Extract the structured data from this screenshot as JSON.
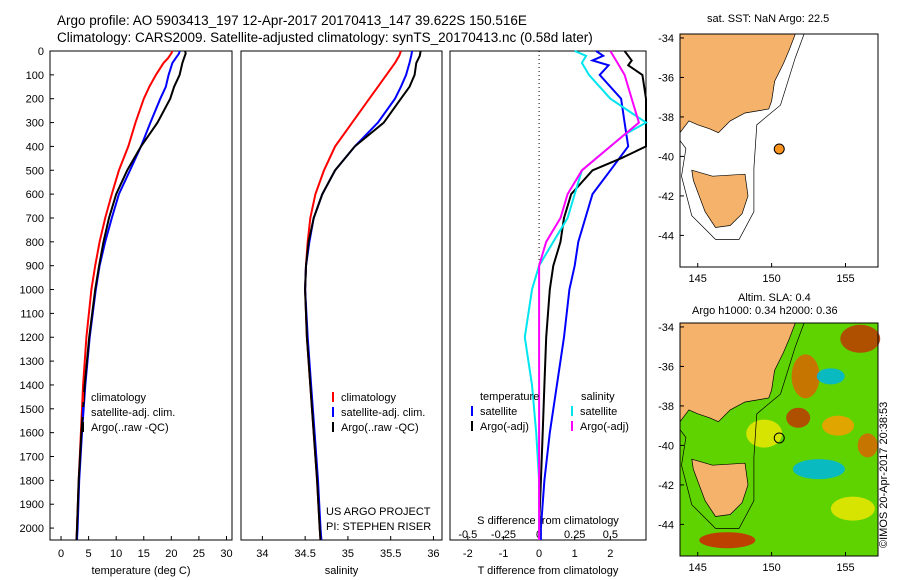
{
  "header": {
    "line1": "Argo profile: AO 5903413_197 12-Apr-2017 20170413_147 39.622S 150.516E",
    "line2": "Climatology: CARS2009. Satellite-adjusted climatology: synTS_20170413.nc (0.58d later)"
  },
  "depth_ticks": [
    "0",
    "100",
    "200",
    "300",
    "400",
    "500",
    "600",
    "700",
    "800",
    "900",
    "1000",
    "1100",
    "1200",
    "1300",
    "1400",
    "1500",
    "1600",
    "1700",
    "1800",
    "1900",
    "2000"
  ],
  "colors": {
    "climatology": "#ff0000",
    "satellite": "#0000ff",
    "argo": "#000000",
    "sat_salinity": "#00e5ee",
    "argo_salinity": "#ff00ff",
    "land": "#f5b26b",
    "map_ocean": "#ffffff"
  },
  "chart_data": [
    {
      "type": "line",
      "name": "temperature",
      "xlabel": "temperature (deg C)",
      "xlim": [
        -2,
        31
      ],
      "ylim": [
        2050,
        0
      ],
      "xticks": [
        "0",
        "5",
        "10",
        "15",
        "20",
        "25",
        "30"
      ],
      "legend": [
        "climatology",
        "satellite-adj. clim.",
        "Argo(..raw -QC)"
      ],
      "series": [
        {
          "key": "climatology",
          "color": "#ff0000",
          "depth": [
            0,
            10,
            30,
            50,
            100,
            150,
            200,
            300,
            400,
            500,
            600,
            700,
            800,
            900,
            1000,
            1200,
            1400,
            1600,
            1800,
            2000,
            2050
          ],
          "values": [
            20.2,
            20.0,
            19.4,
            18.6,
            17.2,
            16.0,
            15.0,
            13.5,
            12.2,
            10.5,
            9.2,
            8.0,
            7.0,
            6.2,
            5.5,
            4.6,
            4.0,
            3.6,
            3.2,
            2.9,
            2.8
          ]
        },
        {
          "key": "satellite",
          "color": "#0000ff",
          "depth": [
            0,
            10,
            30,
            50,
            100,
            150,
            200,
            300,
            400,
            500,
            600,
            700,
            800,
            900,
            1000,
            1200,
            1400,
            1600,
            1800,
            2000,
            2050
          ],
          "values": [
            21.5,
            21.4,
            20.8,
            20.2,
            19.5,
            19.0,
            18.0,
            16.2,
            14.5,
            12.5,
            10.5,
            9.2,
            8.0,
            7.0,
            6.3,
            5.2,
            4.4,
            3.8,
            3.3,
            3.0,
            2.9
          ]
        },
        {
          "key": "argo",
          "color": "#000000",
          "depth": [
            0,
            10,
            30,
            50,
            100,
            150,
            200,
            300,
            400,
            500,
            600,
            700,
            800,
            900,
            1000,
            1200,
            1400,
            1600,
            1800,
            2000,
            2050
          ],
          "values": [
            22.5,
            22.6,
            22.3,
            22.0,
            21.5,
            20.5,
            19.8,
            17.5,
            14.5,
            12.0,
            10.0,
            8.7,
            7.7,
            6.9,
            6.2,
            5.1,
            4.3,
            3.7,
            3.2,
            2.9,
            2.8
          ]
        }
      ]
    },
    {
      "type": "line",
      "name": "salinity",
      "xlabel": "salinity",
      "xlim": [
        33.75,
        36.1
      ],
      "ylim": [
        2050,
        0
      ],
      "xticks": [
        "34",
        "34.5",
        "35",
        "35.5",
        "36"
      ],
      "legend": [
        "climatology",
        "satellite-adj. clim.",
        "Argo(..raw -QC)"
      ],
      "credit": [
        "US ARGO PROJECT",
        "PI: STEPHEN RISER"
      ],
      "series": [
        {
          "key": "climatology",
          "color": "#ff0000",
          "depth": [
            0,
            20,
            50,
            100,
            150,
            200,
            300,
            400,
            500,
            600,
            700,
            800,
            900,
            1000,
            1200,
            1400,
            1600,
            1800,
            2000,
            2050
          ],
          "values": [
            35.62,
            35.6,
            35.55,
            35.45,
            35.35,
            35.25,
            35.05,
            34.85,
            34.72,
            34.62,
            34.56,
            34.53,
            34.51,
            34.5,
            34.52,
            34.56,
            34.6,
            34.64,
            34.67,
            34.68
          ]
        },
        {
          "key": "satellite",
          "color": "#0000ff",
          "depth": [
            0,
            20,
            50,
            100,
            150,
            200,
            300,
            400,
            500,
            600,
            700,
            800,
            900,
            1000,
            1200,
            1400,
            1600,
            1800,
            2000,
            2050
          ],
          "values": [
            35.75,
            35.74,
            35.72,
            35.68,
            35.62,
            35.55,
            35.35,
            35.08,
            34.85,
            34.7,
            34.6,
            34.55,
            34.51,
            34.5,
            34.53,
            34.57,
            34.61,
            34.65,
            34.68,
            34.69
          ]
        },
        {
          "key": "argo",
          "color": "#000000",
          "depth": [
            0,
            20,
            50,
            100,
            150,
            200,
            300,
            400,
            500,
            600,
            700,
            800,
            900,
            1000,
            1200,
            1400,
            1600,
            1800,
            2000,
            2050
          ],
          "values": [
            35.85,
            35.84,
            35.8,
            35.78,
            35.72,
            35.62,
            35.42,
            35.08,
            34.85,
            34.7,
            34.6,
            34.54,
            34.51,
            34.5,
            34.52,
            34.56,
            34.6,
            34.64,
            34.67,
            34.68
          ]
        }
      ]
    },
    {
      "type": "line",
      "name": "difference",
      "xlabel": "T difference from climatology",
      "xlabel_top": "S difference from climatology",
      "xlim": [
        -2.5,
        3.0
      ],
      "ylim": [
        2050,
        0
      ],
      "xticks": [
        "-2",
        "-1",
        "0",
        "1",
        "2"
      ],
      "xticks_s": [
        "-0.5",
        "-0.25",
        "0",
        "0.25",
        "0.5"
      ],
      "legend_temperature_title": "temperature",
      "legend_salinity_title": "salinity",
      "legend": [
        "satellite",
        "Argo(-adj)",
        "satellite",
        "Argo(-adj)"
      ],
      "series": [
        {
          "key": "t_satellite",
          "color": "#0000ff",
          "depth": [
            0,
            20,
            40,
            60,
            100,
            200,
            300,
            400,
            500,
            600,
            700,
            800,
            900,
            1000,
            1200,
            1400,
            1600,
            1800,
            2000,
            2050
          ],
          "values": [
            1.6,
            1.8,
            1.5,
            1.95,
            1.7,
            2.3,
            2.4,
            2.5,
            2.0,
            1.5,
            1.3,
            1.1,
            1.0,
            0.85,
            0.7,
            0.5,
            0.3,
            0.15,
            0.05,
            0.05
          ]
        },
        {
          "key": "t_argo",
          "color": "#000000",
          "depth": [
            0,
            20,
            40,
            60,
            100,
            200,
            300,
            400,
            450,
            500,
            600,
            700,
            800,
            900,
            1000,
            1200,
            1400,
            1600,
            1800,
            2000,
            2050
          ],
          "values": [
            2.4,
            2.5,
            2.6,
            2.5,
            2.9,
            3.0,
            3.0,
            3.0,
            2.3,
            1.5,
            0.9,
            0.7,
            0.6,
            0.4,
            0.3,
            0.2,
            0.15,
            0.1,
            0.05,
            0.0,
            0.0
          ]
        },
        {
          "key": "s_satellite",
          "color": "#00e5ee",
          "depth": [
            0,
            20,
            50,
            100,
            200,
            300,
            350,
            400,
            500,
            600,
            700,
            800,
            900,
            1000,
            1200,
            1400,
            1600,
            1800,
            2000,
            2050
          ],
          "values": [
            0.25,
            0.33,
            0.3,
            0.35,
            0.5,
            0.75,
            0.6,
            0.5,
            0.3,
            0.25,
            0.2,
            0.1,
            0.0,
            -0.05,
            -0.1,
            -0.05,
            -0.02,
            0.0,
            0.0,
            0.0
          ]
        },
        {
          "key": "s_argo",
          "color": "#ff00ff",
          "depth": [
            0,
            20,
            50,
            100,
            200,
            300,
            400,
            500,
            600,
            700,
            800,
            900,
            1000,
            1200,
            1400,
            1600,
            1800,
            2000,
            2050
          ],
          "values": [
            0.5,
            0.52,
            0.55,
            0.6,
            0.65,
            0.7,
            0.5,
            0.3,
            0.2,
            0.15,
            0.05,
            0.0,
            0.0,
            0.0,
            0.0,
            0.0,
            0.0,
            0.0,
            0.0
          ]
        }
      ]
    }
  ],
  "maps": {
    "top": {
      "title": "sat. SST: NaN Argo: 22.5",
      "yticks": [
        "-34",
        "-36",
        "-38",
        "-40",
        "-42",
        "-44"
      ],
      "xticks": [
        "145",
        "150",
        "155"
      ]
    },
    "bottom": {
      "title1": "Altim. SLA: 0.4",
      "title2": "Argo h1000: 0.34 h2000: 0.36",
      "yticks": [
        "-34",
        "-36",
        "-38",
        "-40",
        "-42",
        "-44"
      ],
      "xticks": [
        "145",
        "150",
        "155"
      ]
    }
  },
  "credit_vertical": "©IMOS 20-Apr-2017 20:38:53"
}
